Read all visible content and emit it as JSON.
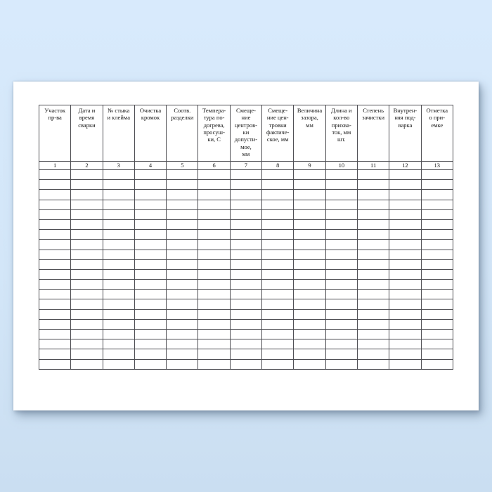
{
  "page": {
    "background_color": "#d3e6f8",
    "paper_color": "#ffffff",
    "grid_color": "#4e4e53",
    "text_color": "#141414"
  },
  "table": {
    "body_row_count": 20,
    "columns": [
      {
        "number": "1",
        "label": "Участок\nпр-ва"
      },
      {
        "number": "2",
        "label": "Дата и\nвремя\nсварки"
      },
      {
        "number": "3",
        "label": "№ стыка\nи клейма"
      },
      {
        "number": "4",
        "label": "Очистка\nкромок"
      },
      {
        "number": "5",
        "label": "Соотв.\nразделки"
      },
      {
        "number": "6",
        "label": "Темпера-\nтура по-\nдогрева,\nпросуш-\nки, С"
      },
      {
        "number": "7",
        "label": "Смеще-\nние\nцентров-\nки\nдопусти-\nмое,\nмм"
      },
      {
        "number": "8",
        "label": "Смеще-\nние цен-\nтровки\nфактиче-\nское, мм"
      },
      {
        "number": "9",
        "label": "Величина\nзазора,\nмм"
      },
      {
        "number": "10",
        "label": "Длина и\nкол-во\nприхва-\nток, мм\nшт."
      },
      {
        "number": "11",
        "label": "Степень\nзачистки"
      },
      {
        "number": "12",
        "label": "Внутрен-\nняя под-\nварка"
      },
      {
        "number": "13",
        "label": "Отметка\nо при-\nемке"
      }
    ]
  }
}
